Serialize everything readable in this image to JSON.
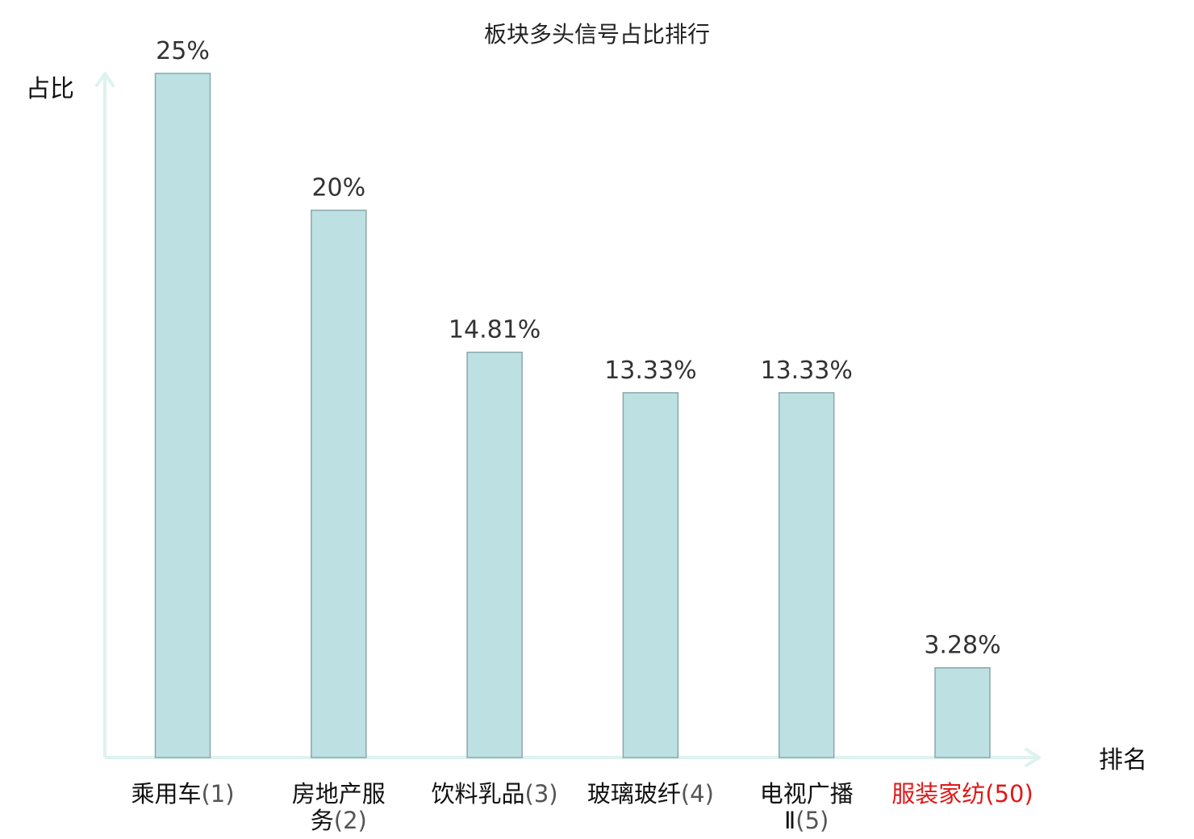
{
  "chart_data": {
    "type": "bar",
    "title": "板块多头信号占比排行",
    "xlabel": "排名",
    "ylabel": "占比",
    "categories": [
      {
        "name_lines": [
          "乘用车"
        ],
        "rank": "(1)",
        "highlight": false
      },
      {
        "name_lines": [
          "房地产服",
          "务"
        ],
        "rank": "(2)",
        "highlight": false
      },
      {
        "name_lines": [
          "饮料乳品"
        ],
        "rank": "(3)",
        "highlight": false
      },
      {
        "name_lines": [
          "玻璃玻纤"
        ],
        "rank": "(4)",
        "highlight": false
      },
      {
        "name_lines": [
          "电视广播",
          "Ⅱ"
        ],
        "rank": "(5)",
        "highlight": false
      },
      {
        "name_lines": [
          "服装家纺"
        ],
        "rank": "(50)",
        "highlight": true
      }
    ],
    "values": [
      25,
      20,
      14.81,
      13.33,
      13.33,
      3.28
    ],
    "value_labels": [
      "25%",
      "20%",
      "14.81%",
      "13.33%",
      "13.33%",
      "3.28%"
    ],
    "ylim": [
      0,
      25
    ],
    "grid": false,
    "legend": "none",
    "colors": {
      "bar_fill": "#bde0e3",
      "bar_stroke": "#8aa8aa",
      "axis": "#def2ef",
      "text": "#111111",
      "rank_text": "#555555",
      "highlight_text": "#e01818"
    }
  }
}
